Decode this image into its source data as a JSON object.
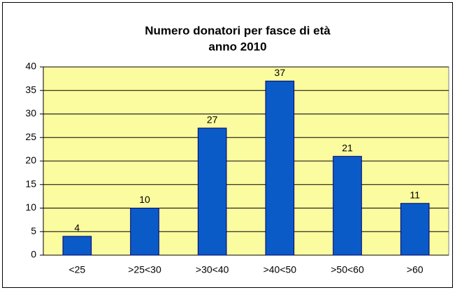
{
  "chart_data": {
    "type": "bar",
    "title": "Numero donatori per fasce di età",
    "subtitle": "anno 2010",
    "categories": [
      "<25",
      ">25<30",
      ">30<40",
      ">40<50",
      ">50<60",
      ">60"
    ],
    "values": [
      4,
      10,
      27,
      37,
      21,
      11
    ],
    "color": "#0a5bc8",
    "plot_background": "#fbfb9f",
    "ylim": [
      0,
      40
    ],
    "yticks": [
      0,
      5,
      10,
      15,
      20,
      25,
      30,
      35,
      40
    ],
    "grid": true,
    "data_labels": true
  }
}
